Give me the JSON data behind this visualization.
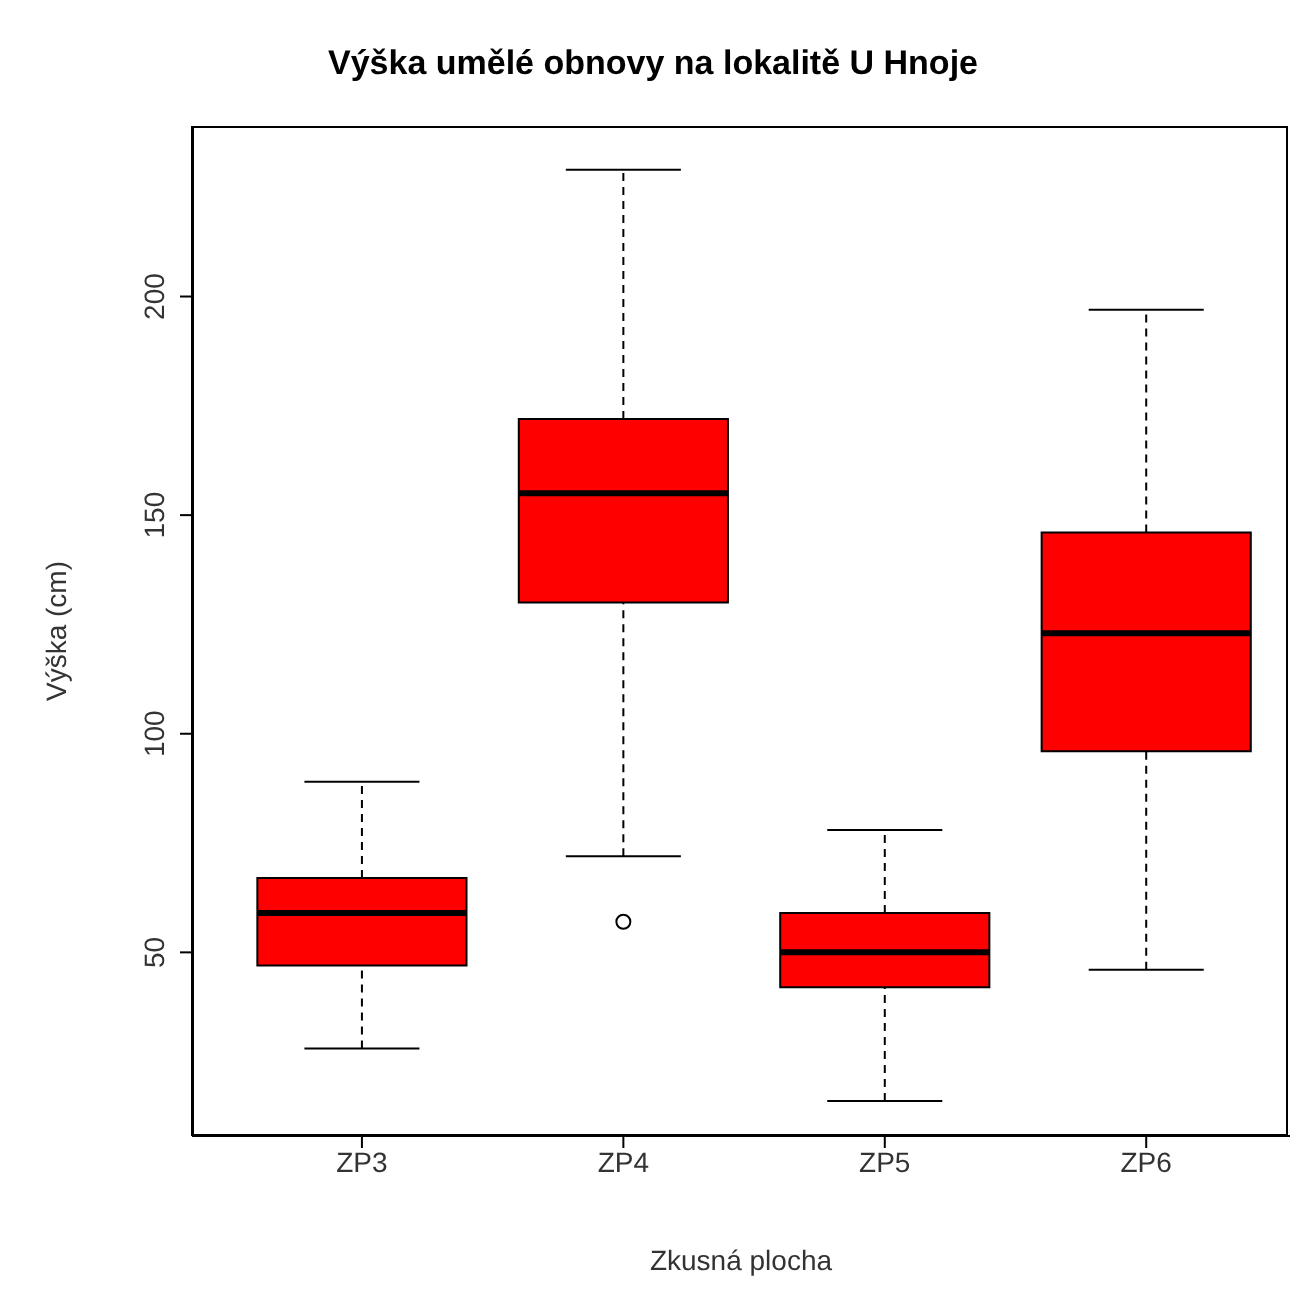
{
  "chart_data": {
    "type": "box",
    "title": "Výška umělé obnovy na lokalitě U Hnoje",
    "xlabel": "Zkusná plocha",
    "ylabel": "Výška (cm)",
    "categories": [
      "ZP3",
      "ZP4",
      "ZP5",
      "ZP6"
    ],
    "color": "#ff0000",
    "boxes": [
      {
        "low": 28,
        "q1": 47,
        "median": 59,
        "q3": 67,
        "high": 89
      },
      {
        "low": 72,
        "q1": 130,
        "median": 155,
        "q3": 172,
        "high": 229,
        "outliers": [
          57
        ]
      },
      {
        "low": 16,
        "q1": 42,
        "median": 50,
        "q3": 59,
        "high": 78
      },
      {
        "low": 46,
        "q1": 96,
        "median": 123,
        "q3": 146,
        "high": 197
      }
    ],
    "ylim": [
      8,
      239
    ],
    "yticks": [
      50,
      100,
      150,
      200
    ],
    "grid": false
  }
}
